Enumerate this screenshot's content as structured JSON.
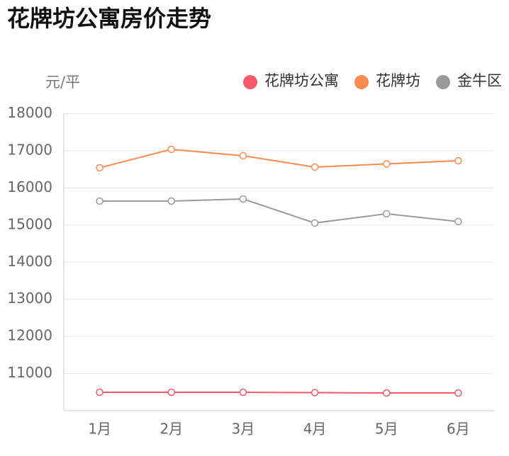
{
  "chart_data": {
    "type": "line",
    "title": "花牌坊公寓房价走势",
    "y_label": "元/平",
    "categories": [
      "1月",
      "2月",
      "3月",
      "4月",
      "5月",
      "6月"
    ],
    "series": [
      {
        "name": "花牌坊公寓",
        "color": "#f5596c",
        "values": [
          10496,
          10496,
          10496,
          10486,
          10477,
          10477
        ]
      },
      {
        "name": "花牌坊",
        "color": "#f98a52",
        "values": [
          16542,
          17038,
          16866,
          16561,
          16647,
          16733
        ]
      },
      {
        "name": "金牛区",
        "color": "#9a9a9a",
        "values": [
          15645,
          15645,
          15702,
          15055,
          15303,
          15093
        ]
      }
    ],
    "ylim": [
      10000,
      18000
    ],
    "yticks": [
      11000,
      12000,
      13000,
      14000,
      15000,
      16000,
      17000,
      18000
    ],
    "grid": true
  }
}
